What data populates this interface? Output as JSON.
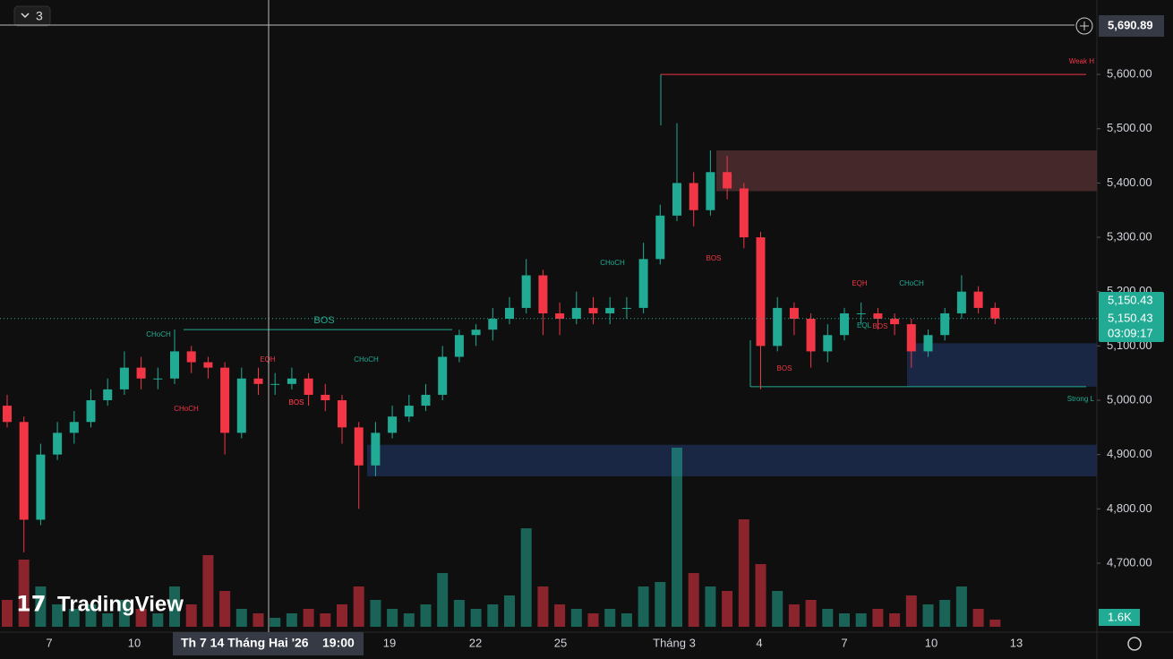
{
  "chart_data": {
    "type": "candlestick",
    "interval_label": "3",
    "logo": "TradingView",
    "ohlc": [
      [
        4990,
        5010,
        4950,
        4960
      ],
      [
        4960,
        4970,
        4720,
        4780
      ],
      [
        4780,
        4920,
        4770,
        4900
      ],
      [
        4900,
        4960,
        4890,
        4940
      ],
      [
        4940,
        4980,
        4920,
        4960
      ],
      [
        4960,
        5020,
        4950,
        5000
      ],
      [
        5000,
        5040,
        4990,
        5020
      ],
      [
        5020,
        5090,
        5010,
        5060
      ],
      [
        5060,
        5080,
        5020,
        5040
      ],
      [
        5040,
        5060,
        5020,
        5040
      ],
      [
        5040,
        5130,
        5030,
        5090
      ],
      [
        5090,
        5100,
        5050,
        5070
      ],
      [
        5070,
        5080,
        5040,
        5060
      ],
      [
        5060,
        5070,
        4900,
        4940
      ],
      [
        4940,
        5060,
        4930,
        5040
      ],
      [
        5040,
        5060,
        5010,
        5030
      ],
      [
        5030,
        5050,
        5010,
        5030
      ],
      [
        5030,
        5060,
        5020,
        5040
      ],
      [
        5040,
        5050,
        4990,
        5010
      ],
      [
        5010,
        5030,
        4980,
        5000
      ],
      [
        5000,
        5010,
        4920,
        4950
      ],
      [
        4950,
        4960,
        4800,
        4880
      ],
      [
        4880,
        4960,
        4860,
        4940
      ],
      [
        4940,
        4990,
        4930,
        4970
      ],
      [
        4970,
        5010,
        4960,
        4990
      ],
      [
        4990,
        5030,
        4980,
        5010
      ],
      [
        5010,
        5100,
        5000,
        5080
      ],
      [
        5080,
        5130,
        5070,
        5120
      ],
      [
        5120,
        5140,
        5100,
        5130
      ],
      [
        5130,
        5170,
        5110,
        5150
      ],
      [
        5150,
        5190,
        5140,
        5170
      ],
      [
        5170,
        5260,
        5160,
        5230
      ],
      [
        5230,
        5240,
        5120,
        5160
      ],
      [
        5160,
        5180,
        5120,
        5150
      ],
      [
        5150,
        5200,
        5140,
        5170
      ],
      [
        5170,
        5190,
        5140,
        5160
      ],
      [
        5160,
        5190,
        5140,
        5170
      ],
      [
        5170,
        5190,
        5150,
        5170
      ],
      [
        5170,
        5290,
        5160,
        5260
      ],
      [
        5260,
        5360,
        5250,
        5340
      ],
      [
        5340,
        5510,
        5330,
        5400
      ],
      [
        5400,
        5420,
        5320,
        5350
      ],
      [
        5350,
        5460,
        5340,
        5420
      ],
      [
        5420,
        5450,
        5370,
        5390
      ],
      [
        5390,
        5400,
        5280,
        5300
      ],
      [
        5300,
        5310,
        5020,
        5100
      ],
      [
        5100,
        5190,
        5090,
        5170
      ],
      [
        5170,
        5180,
        5120,
        5150
      ],
      [
        5150,
        5160,
        5060,
        5090
      ],
      [
        5090,
        5140,
        5070,
        5120
      ],
      [
        5120,
        5170,
        5110,
        5160
      ],
      [
        5160,
        5180,
        5140,
        5160
      ],
      [
        5160,
        5170,
        5130,
        5150
      ],
      [
        5150,
        5160,
        5120,
        5140
      ],
      [
        5140,
        5150,
        5060,
        5090
      ],
      [
        5090,
        5130,
        5080,
        5120
      ],
      [
        5120,
        5170,
        5110,
        5160
      ],
      [
        5160,
        5230,
        5150,
        5200
      ],
      [
        5200,
        5210,
        5160,
        5170
      ],
      [
        5170,
        5180,
        5140,
        5150.43
      ]
    ],
    "volume": [
      6000,
      15000,
      9000,
      5000,
      4000,
      5000,
      3000,
      6000,
      4000,
      3000,
      9000,
      5000,
      16000,
      8000,
      4000,
      3000,
      2000,
      3000,
      4000,
      3000,
      5000,
      9000,
      6000,
      4000,
      3000,
      5000,
      12000,
      6000,
      4000,
      5000,
      7000,
      22000,
      9000,
      5000,
      4000,
      3000,
      4000,
      3000,
      9000,
      10000,
      40000,
      12000,
      9000,
      8000,
      24000,
      14000,
      8000,
      5000,
      6000,
      4000,
      3000,
      3000,
      4000,
      3000,
      7000,
      5000,
      6000,
      9000,
      4000,
      1600
    ],
    "volume_label": "1.6K",
    "yticks": [
      {
        "value": 4700,
        "label": "4,700.00"
      },
      {
        "value": 4800,
        "label": "4,800.00"
      },
      {
        "value": 4900,
        "label": "4,900.00"
      },
      {
        "value": 5000,
        "label": "5,000.00"
      },
      {
        "value": 5100,
        "label": "5,100.00"
      },
      {
        "value": 5200,
        "label": "5,200.00"
      },
      {
        "value": 5300,
        "label": "5,300.00"
      },
      {
        "value": 5400,
        "label": "5,400.00"
      },
      {
        "value": 5500,
        "label": "5,500.00"
      },
      {
        "value": 5600,
        "label": "5,600.00"
      }
    ],
    "ylim": [
      4573,
      5737
    ],
    "x_labels": [
      "7",
      "10",
      "19",
      "22",
      "25",
      "Tháng 3",
      "4",
      "7",
      "10",
      "13"
    ],
    "crosshair_price": {
      "value": 5690.89,
      "label": "5,690.89"
    },
    "crosshair_date": "Th 7 14 Tháng Hai '26",
    "crosshair_time": "19:00",
    "last_price": {
      "value": 5150.43,
      "label": "5,150.43"
    },
    "countdown": "03:09:17",
    "zones": [
      {
        "range": [
          5385,
          5460
        ],
        "color": "#4a2b2e"
      },
      {
        "range": [
          4860,
          4918
        ],
        "color": "#1c2a4a"
      },
      {
        "range": [
          5025,
          5105
        ],
        "color": "#1c2a4a"
      }
    ],
    "levels": [
      {
        "value": 5130,
        "label": "BOS",
        "color": "#22ab94"
      },
      {
        "value": 5600,
        "label": "Weak H",
        "color": "#f23645"
      },
      {
        "value": 5025,
        "label": "Strong L",
        "color": "#22ab94"
      }
    ],
    "annotations": [
      "CHoCH",
      "CHoCH",
      "EQH",
      "BOS",
      "CHoCH",
      "BOS",
      "CHoCH",
      "BOS",
      "BOS",
      "EQH",
      "CHoCH",
      "EQL",
      "BOS"
    ],
    "colors": {
      "up": "#22ab94",
      "down": "#f23645"
    }
  }
}
